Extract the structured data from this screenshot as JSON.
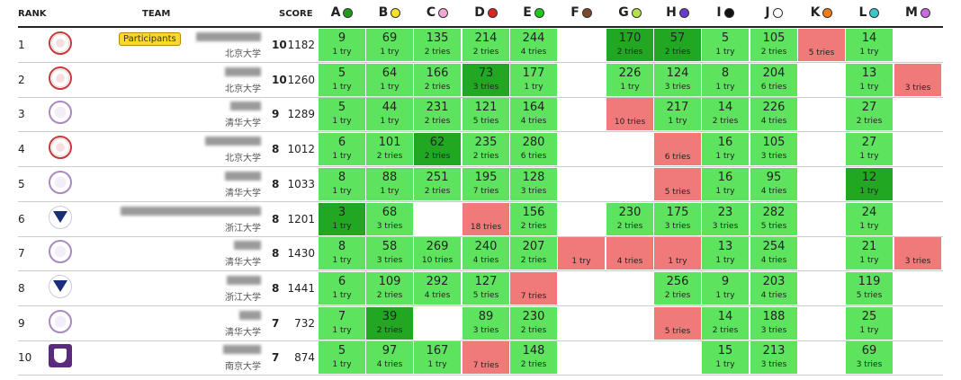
{
  "headers": {
    "rank": "RANK",
    "team": "TEAM",
    "score": "SCORE"
  },
  "problems": [
    {
      "letter": "A",
      "color": "#1e9b1e"
    },
    {
      "letter": "B",
      "color": "#f2e32a"
    },
    {
      "letter": "C",
      "color": "#f3a8d3"
    },
    {
      "letter": "D",
      "color": "#e02424"
    },
    {
      "letter": "E",
      "color": "#1ec81e"
    },
    {
      "letter": "F",
      "color": "#7a4a2a"
    },
    {
      "letter": "G",
      "color": "#b6e04a"
    },
    {
      "letter": "H",
      "color": "#6a3ac8"
    },
    {
      "letter": "I",
      "color": "#111111"
    },
    {
      "letter": "J",
      "color": "#ffffff"
    },
    {
      "letter": "K",
      "color": "#f07d1a"
    },
    {
      "letter": "L",
      "color": "#3ac8c8"
    },
    {
      "letter": "M",
      "color": "#c86ae0"
    }
  ],
  "teams": [
    {
      "rank": "1",
      "logo": "pku",
      "badge": "Participants",
      "university": "北京大学",
      "solved": "10",
      "penalty": "1182",
      "cells": [
        [
          "s",
          "9",
          "1 try"
        ],
        [
          "s",
          "69",
          "1 try"
        ],
        [
          "s",
          "135",
          "2 tries"
        ],
        [
          "s",
          "214",
          "2 tries"
        ],
        [
          "s",
          "244",
          "4 tries"
        ],
        [
          "e"
        ],
        [
          "f1",
          "170",
          "2 tries"
        ],
        [
          "f1",
          "57",
          "2 tries"
        ],
        [
          "s",
          "5",
          "1 try"
        ],
        [
          "s",
          "105",
          "2 tries"
        ],
        [
          "x",
          "",
          "5 tries"
        ],
        [
          "s",
          "14",
          "1 try"
        ],
        [
          "e"
        ]
      ]
    },
    {
      "rank": "2",
      "logo": "pku",
      "university": "北京大学",
      "solved": "10",
      "penalty": "1260",
      "cells": [
        [
          "s",
          "5",
          "1 try"
        ],
        [
          "s",
          "64",
          "1 try"
        ],
        [
          "s",
          "166",
          "2 tries"
        ],
        [
          "f1",
          "73",
          "3 tries"
        ],
        [
          "s",
          "177",
          "1 try"
        ],
        [
          "e"
        ],
        [
          "s",
          "226",
          "1 try"
        ],
        [
          "s",
          "124",
          "3 tries"
        ],
        [
          "s",
          "8",
          "1 try"
        ],
        [
          "s",
          "204",
          "6 tries"
        ],
        [
          "e"
        ],
        [
          "s",
          "13",
          "1 try"
        ],
        [
          "x",
          "",
          "3 tries"
        ]
      ]
    },
    {
      "rank": "3",
      "logo": "thu",
      "university": "清华大学",
      "solved": "9",
      "penalty": "1289",
      "cells": [
        [
          "s",
          "5",
          "1 try"
        ],
        [
          "s",
          "44",
          "1 try"
        ],
        [
          "s",
          "231",
          "2 tries"
        ],
        [
          "s",
          "121",
          "5 tries"
        ],
        [
          "s",
          "164",
          "4 tries"
        ],
        [
          "e"
        ],
        [
          "x",
          "",
          "10 tries"
        ],
        [
          "s",
          "217",
          "1 try"
        ],
        [
          "s",
          "14",
          "2 tries"
        ],
        [
          "s",
          "226",
          "4 tries"
        ],
        [
          "e"
        ],
        [
          "s",
          "27",
          "2 tries"
        ],
        [
          "e"
        ]
      ]
    },
    {
      "rank": "4",
      "logo": "pku",
      "university": "北京大学",
      "solved": "8",
      "penalty": "1012",
      "cells": [
        [
          "s",
          "6",
          "1 try"
        ],
        [
          "s",
          "101",
          "2 tries"
        ],
        [
          "f1",
          "62",
          "2 tries"
        ],
        [
          "s",
          "235",
          "2 tries"
        ],
        [
          "s",
          "280",
          "6 tries"
        ],
        [
          "e"
        ],
        [
          "e"
        ],
        [
          "x",
          "",
          "6 tries"
        ],
        [
          "s",
          "16",
          "1 try"
        ],
        [
          "s",
          "105",
          "3 tries"
        ],
        [
          "e"
        ],
        [
          "s",
          "27",
          "1 try"
        ],
        [
          "e"
        ]
      ]
    },
    {
      "rank": "5",
      "logo": "thu",
      "university": "清华大学",
      "solved": "8",
      "penalty": "1033",
      "cells": [
        [
          "s",
          "8",
          "1 try"
        ],
        [
          "s",
          "88",
          "1 try"
        ],
        [
          "s",
          "251",
          "2 tries"
        ],
        [
          "s",
          "195",
          "7 tries"
        ],
        [
          "s",
          "128",
          "3 tries"
        ],
        [
          "e"
        ],
        [
          "e"
        ],
        [
          "x",
          "",
          "5 tries"
        ],
        [
          "s",
          "16",
          "1 try"
        ],
        [
          "s",
          "95",
          "4 tries"
        ],
        [
          "e"
        ],
        [
          "f1",
          "12",
          "1 try"
        ],
        [
          "e"
        ]
      ]
    },
    {
      "rank": "6",
      "logo": "zju",
      "university": "浙江大学",
      "solved": "8",
      "penalty": "1201",
      "cells": [
        [
          "f1",
          "3",
          "1 try"
        ],
        [
          "s",
          "68",
          "3 tries"
        ],
        [
          "e"
        ],
        [
          "x",
          "",
          "18 tries"
        ],
        [
          "s",
          "156",
          "2 tries"
        ],
        [
          "e"
        ],
        [
          "s",
          "230",
          "2 tries"
        ],
        [
          "s",
          "175",
          "3 tries"
        ],
        [
          "s",
          "23",
          "3 tries"
        ],
        [
          "s",
          "282",
          "5 tries"
        ],
        [
          "e"
        ],
        [
          "s",
          "24",
          "1 try"
        ],
        [
          "e"
        ]
      ]
    },
    {
      "rank": "7",
      "logo": "thu",
      "university": "清华大学",
      "solved": "8",
      "penalty": "1430",
      "cells": [
        [
          "s",
          "8",
          "1 try"
        ],
        [
          "s",
          "58",
          "3 tries"
        ],
        [
          "s",
          "269",
          "10 tries"
        ],
        [
          "s",
          "240",
          "4 tries"
        ],
        [
          "s",
          "207",
          "2 tries"
        ],
        [
          "x",
          "",
          "1 try"
        ],
        [
          "x",
          "",
          "4 tries"
        ],
        [
          "x",
          "",
          "1 try"
        ],
        [
          "s",
          "13",
          "1 try"
        ],
        [
          "s",
          "254",
          "4 tries"
        ],
        [
          "e"
        ],
        [
          "s",
          "21",
          "1 try"
        ],
        [
          "x",
          "",
          "3 tries"
        ]
      ]
    },
    {
      "rank": "8",
      "logo": "zju",
      "university": "浙江大学",
      "solved": "8",
      "penalty": "1441",
      "cells": [
        [
          "s",
          "6",
          "1 try"
        ],
        [
          "s",
          "109",
          "2 tries"
        ],
        [
          "s",
          "292",
          "4 tries"
        ],
        [
          "s",
          "127",
          "5 tries"
        ],
        [
          "x",
          "",
          "7 tries"
        ],
        [
          "e"
        ],
        [
          "e"
        ],
        [
          "s",
          "256",
          "2 tries"
        ],
        [
          "s",
          "9",
          "1 try"
        ],
        [
          "s",
          "203",
          "4 tries"
        ],
        [
          "e"
        ],
        [
          "s",
          "119",
          "5 tries"
        ],
        [
          "e"
        ]
      ]
    },
    {
      "rank": "9",
      "logo": "thu",
      "university": "清华大学",
      "solved": "7",
      "penalty": "732",
      "cells": [
        [
          "s",
          "7",
          "1 try"
        ],
        [
          "f1",
          "39",
          "2 tries"
        ],
        [
          "e"
        ],
        [
          "s",
          "89",
          "3 tries"
        ],
        [
          "s",
          "230",
          "2 tries"
        ],
        [
          "e"
        ],
        [
          "e"
        ],
        [
          "x",
          "",
          "5 tries"
        ],
        [
          "s",
          "14",
          "2 tries"
        ],
        [
          "s",
          "188",
          "3 tries"
        ],
        [
          "e"
        ],
        [
          "s",
          "25",
          "1 try"
        ],
        [
          "e"
        ]
      ]
    },
    {
      "rank": "10",
      "logo": "nju",
      "university": "南京大学",
      "solved": "7",
      "penalty": "874",
      "cells": [
        [
          "s",
          "5",
          "1 try"
        ],
        [
          "s",
          "97",
          "4 tries"
        ],
        [
          "s",
          "167",
          "1 try"
        ],
        [
          "x",
          "",
          "7 tries"
        ],
        [
          "s",
          "148",
          "2 tries"
        ],
        [
          "e"
        ],
        [
          "e"
        ],
        [
          "e"
        ],
        [
          "s",
          "15",
          "1 try"
        ],
        [
          "s",
          "213",
          "3 tries"
        ],
        [
          "e"
        ],
        [
          "s",
          "69",
          "3 tries"
        ],
        [
          "e"
        ]
      ]
    }
  ]
}
